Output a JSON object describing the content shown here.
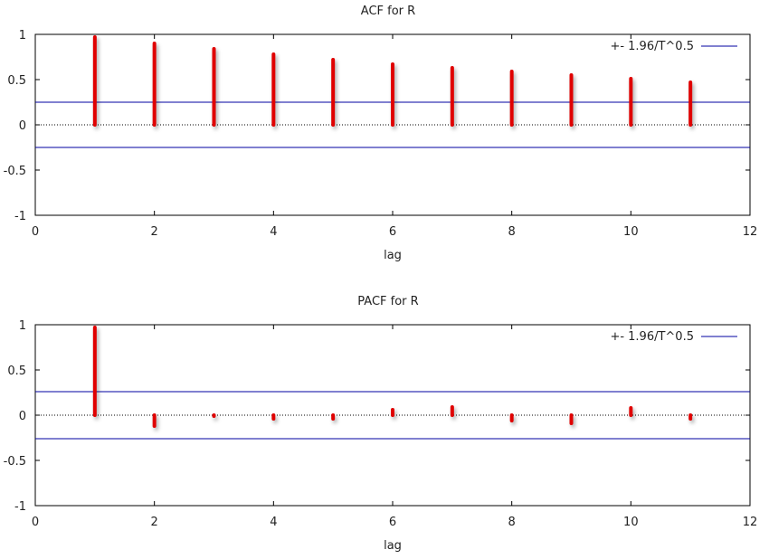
{
  "chart_data": [
    {
      "type": "bar",
      "title": "ACF for R",
      "xlabel": "lag",
      "ylabel": "",
      "xlim": [
        0,
        12
      ],
      "ylim": [
        -1,
        1
      ],
      "x_ticks": [
        "0",
        "2",
        "4",
        "6",
        "8",
        "10",
        "12"
      ],
      "y_ticks": [
        "1",
        "0.5",
        "0",
        "-0.5",
        "-1"
      ],
      "legend": "+- 1.96/T^0.5",
      "legend_position": "top-right",
      "confidence_band": 0.25,
      "colors": {
        "bars": "#e00000",
        "band": "#0000a0"
      },
      "series": [
        {
          "x": [
            1,
            2,
            3,
            4,
            5,
            6,
            7,
            8,
            9,
            10,
            11
          ],
          "values": [
            0.97,
            0.9,
            0.84,
            0.78,
            0.72,
            0.67,
            0.63,
            0.59,
            0.55,
            0.51,
            0.47
          ]
        }
      ]
    },
    {
      "type": "bar",
      "title": "PACF for R",
      "xlabel": "lag",
      "ylabel": "",
      "xlim": [
        0,
        12
      ],
      "ylim": [
        -1,
        1
      ],
      "x_ticks": [
        "0",
        "2",
        "4",
        "6",
        "8",
        "10",
        "12"
      ],
      "y_ticks": [
        "1",
        "0.5",
        "0",
        "-0.5",
        "-1"
      ],
      "legend": "+- 1.96/T^0.5",
      "legend_position": "top-right",
      "confidence_band": 0.26,
      "colors": {
        "bars": "#e00000",
        "band": "#0000a0"
      },
      "series": [
        {
          "x": [
            1,
            2,
            3,
            4,
            5,
            6,
            7,
            8,
            9,
            10,
            11
          ],
          "values": [
            0.97,
            -0.12,
            -0.01,
            -0.04,
            -0.04,
            0.06,
            0.09,
            -0.06,
            -0.09,
            0.08,
            -0.04
          ]
        }
      ]
    }
  ]
}
